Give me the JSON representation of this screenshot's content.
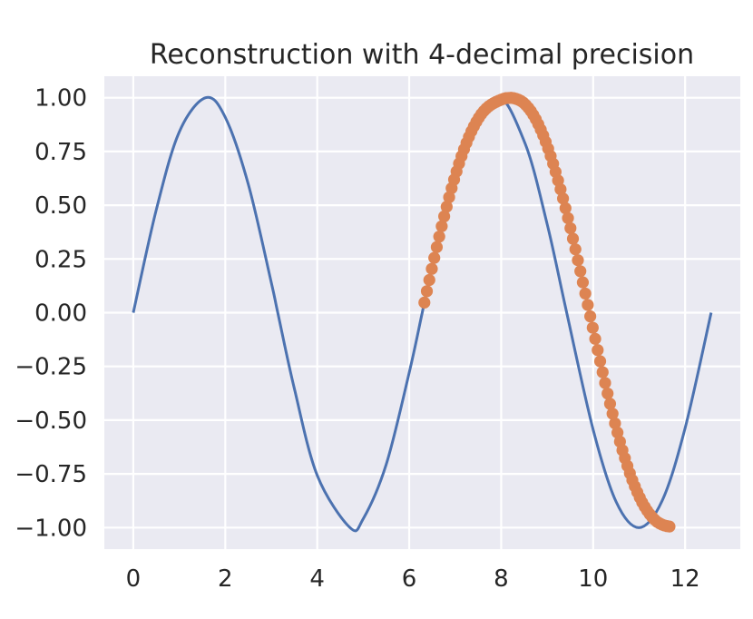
{
  "chart_data": {
    "type": "line",
    "title": "Reconstruction with 4-decimal precision",
    "xlabel": "",
    "ylabel": "",
    "xlim": [
      -0.63,
      13.2
    ],
    "ylim": [
      -1.1,
      1.1
    ],
    "xticks": [
      {
        "value": 0,
        "label": "0"
      },
      {
        "value": 2,
        "label": "2"
      },
      {
        "value": 4,
        "label": "4"
      },
      {
        "value": 6,
        "label": "6"
      },
      {
        "value": 8,
        "label": "8"
      },
      {
        "value": 10,
        "label": "10"
      },
      {
        "value": 12,
        "label": "12"
      }
    ],
    "yticks": [
      {
        "value": 1.0,
        "label": "1.00"
      },
      {
        "value": 0.75,
        "label": "0.75"
      },
      {
        "value": 0.5,
        "label": "0.50"
      },
      {
        "value": 0.25,
        "label": "0.25"
      },
      {
        "value": 0.0,
        "label": "0.00"
      },
      {
        "value": -0.25,
        "label": "−0.25"
      },
      {
        "value": -0.5,
        "label": "−0.50"
      },
      {
        "value": -0.75,
        "label": "−0.75"
      },
      {
        "value": -1.0,
        "label": "−1.00"
      }
    ],
    "grid": true,
    "series": [
      {
        "type": "line",
        "color": "#4c72b0",
        "x": [
          0.0,
          0.5,
          1.0,
          1.5708,
          2.0,
          2.5,
          3.0,
          3.1416,
          3.5,
          4.0,
          4.7124,
          5.0,
          5.5,
          6.0,
          6.2832,
          6.5,
          7.0,
          7.854,
          8.5,
          9.0,
          9.4248,
          10.0,
          10.5,
          10.9956,
          11.5,
          12.0,
          12.5664
        ],
        "y": [
          0.0,
          0.479,
          0.841,
          1.0,
          0.909,
          0.598,
          0.141,
          0.0,
          -0.351,
          -0.757,
          -1.0,
          -0.959,
          -0.706,
          -0.279,
          0.0,
          0.215,
          0.657,
          1.0,
          0.798,
          0.412,
          0.0,
          -0.544,
          -0.88,
          -1.0,
          -0.875,
          -0.537,
          0.0
        ]
      },
      {
        "type": "scatter",
        "color": "#dd8452",
        "x_start": 6.33,
        "x_end": 11.66,
        "count": 100,
        "y": [
          0.047,
          0.1,
          0.152,
          0.204,
          0.255,
          0.305,
          0.354,
          0.402,
          0.448,
          0.493,
          0.537,
          0.579,
          0.619,
          0.657,
          0.694,
          0.728,
          0.76,
          0.79,
          0.818,
          0.844,
          0.867,
          0.888,
          0.907,
          0.924,
          0.938,
          0.95,
          0.96,
          0.968,
          0.975,
          0.981,
          0.986,
          0.991,
          0.995,
          0.998,
          0.999,
          1.0,
          0.998,
          0.995,
          0.991,
          0.985,
          0.977,
          0.966,
          0.953,
          0.938,
          0.92,
          0.9,
          0.877,
          0.852,
          0.825,
          0.795,
          0.763,
          0.729,
          0.693,
          0.655,
          0.615,
          0.574,
          0.531,
          0.486,
          0.44,
          0.393,
          0.344,
          0.295,
          0.244,
          0.193,
          0.141,
          0.089,
          0.036,
          -0.017,
          -0.07,
          -0.122,
          -0.174,
          -0.226,
          -0.277,
          -0.327,
          -0.376,
          -0.424,
          -0.47,
          -0.515,
          -0.558,
          -0.6,
          -0.64,
          -0.677,
          -0.713,
          -0.747,
          -0.779,
          -0.808,
          -0.835,
          -0.86,
          -0.883,
          -0.903,
          -0.921,
          -0.937,
          -0.951,
          -0.963,
          -0.973,
          -0.98,
          -0.986,
          -0.99,
          -0.993,
          -0.995
        ]
      }
    ]
  }
}
